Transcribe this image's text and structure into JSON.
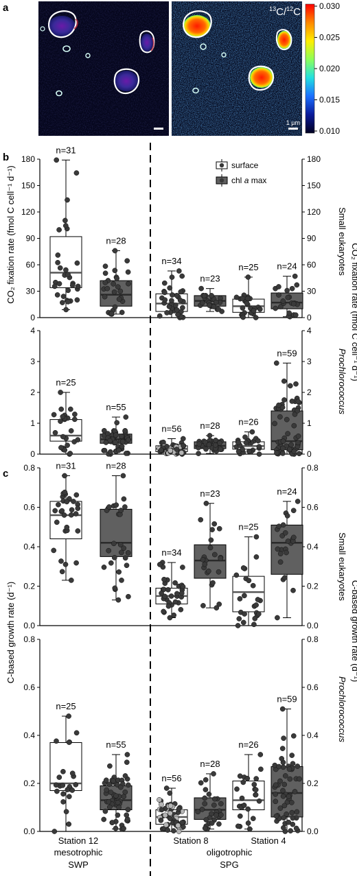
{
  "panel_letters": {
    "a": "a",
    "b": "b",
    "c": "c"
  },
  "imagery": {
    "ratio_label_c13": "13",
    "ratio_label_c": "C/",
    "ratio_label_c12": "12",
    "ratio_label_c2": "C",
    "scale_bar_label": "1 µm",
    "colorbar_ticks": [
      "0.030",
      "0.025",
      "0.020",
      "0.015",
      "0.010"
    ],
    "colorbar_stops": [
      "#ff0000",
      "#ff8800",
      "#ffee00",
      "#8cff5a",
      "#22e0e0",
      "#1b6fff",
      "#0a1a9a",
      "#000020"
    ]
  },
  "axis_labels": {
    "fixation_left": "CO₂ fixation rate (fmol C cell⁻¹ d⁻¹)",
    "fixation_right": "CO₂ fixation rate (fmol C cell⁻¹ d⁻¹)",
    "growth_left": "C-based growth rate (d⁻¹)",
    "growth_right": "C-based growth rate (d⁻¹)",
    "small_eukaryotes": "Small eukaryotes",
    "prochlorococcus": "Prochlorococcus"
  },
  "legend": {
    "surface": "surface",
    "chl_prefix": "chl ",
    "chl_italic": "a",
    "chl_suffix": " max"
  },
  "x_labels": {
    "station12": "Station 12",
    "station8": "Station 8",
    "station4": "Station 4",
    "mesotrophic": "mesotrophic",
    "oligotrophic": "oligotrophic",
    "swp": "SWP",
    "spg": "SPG"
  },
  "colors": {
    "surface_box": "#ffffff",
    "chl_box": "#606060",
    "point": "#3a3a3a",
    "point_light": "#b5b5b5"
  },
  "chart_data": [
    {
      "type": "box",
      "panel": "b-top",
      "ylabel": "CO₂ fixation rate (fmol C cell⁻¹ d⁻¹)",
      "right_label": "Small eukaryotes",
      "ylim": [
        0,
        180
      ],
      "yticks": [
        0,
        30,
        60,
        90,
        120,
        150,
        180
      ],
      "legend_shown": true,
      "legend_position": "top-right",
      "series": [
        {
          "station": "Station 12",
          "depth": "surface",
          "n_label": "n=31",
          "n": 31,
          "whisker_low": 9,
          "q1": 34,
          "median": 51,
          "q3": 92,
          "whisker_high": 179
        },
        {
          "station": "Station 12",
          "depth": "chl a max",
          "n_label": "n=28",
          "n": 28,
          "whisker_low": 4,
          "q1": 13,
          "median": 26,
          "q3": 42,
          "whisker_high": 76
        },
        {
          "station": "Station 8",
          "depth": "surface",
          "n_label": "n=34",
          "n": 34,
          "whisker_low": 0,
          "q1": 7,
          "median": 16,
          "q3": 27,
          "whisker_high": 53
        },
        {
          "station": "Station 8",
          "depth": "chl a max",
          "n_label": "n=23",
          "n": 23,
          "whisker_low": 7,
          "q1": 13,
          "median": 19,
          "q3": 25,
          "whisker_high": 33
        },
        {
          "station": "Station 4",
          "depth": "surface",
          "n_label": "n=25",
          "n": 25,
          "whisker_low": 0,
          "q1": 6,
          "median": 13,
          "q3": 21,
          "whisker_high": 46
        },
        {
          "station": "Station 4",
          "depth": "chl a max",
          "n_label": "n=24",
          "n": 24,
          "whisker_low": 1,
          "q1": 10,
          "median": 17,
          "q3": 28,
          "whisker_high": 47
        }
      ]
    },
    {
      "type": "box",
      "panel": "b-bottom",
      "ylabel": "CO₂ fixation rate (fmol C cell⁻¹ d⁻¹)",
      "right_label": "Prochlorococcus",
      "ylim": [
        0,
        4
      ],
      "yticks": [
        0,
        1,
        2,
        3,
        4
      ],
      "series": [
        {
          "station": "Station 12",
          "depth": "surface",
          "n_label": "n=25",
          "n": 25,
          "whisker_low": 0,
          "q1": 0.42,
          "median": 0.6,
          "q3": 1.12,
          "whisker_high": 2.0
        },
        {
          "station": "Station 12",
          "depth": "chl a max",
          "n_label": "n=55",
          "n": 55,
          "whisker_low": 0,
          "q1": 0.35,
          "median": 0.48,
          "q3": 0.65,
          "whisker_high": 1.2
        },
        {
          "station": "Station 8",
          "depth": "surface",
          "n_label": "n=56",
          "n": 56,
          "whisker_low": 0,
          "q1": 0.08,
          "median": 0.17,
          "q3": 0.27,
          "whisker_high": 0.5
        },
        {
          "station": "Station 8",
          "depth": "chl a max",
          "n_label": "n=28",
          "n": 28,
          "whisker_low": 0.02,
          "q1": 0.18,
          "median": 0.27,
          "q3": 0.4,
          "whisker_high": 0.6
        },
        {
          "station": "Station 4",
          "depth": "surface",
          "n_label": "n=26",
          "n": 26,
          "whisker_low": 0,
          "q1": 0.16,
          "median": 0.26,
          "q3": 0.4,
          "whisker_high": 0.72
        },
        {
          "station": "Station 4",
          "depth": "chl a max",
          "n_label": "n=59",
          "n": 59,
          "whisker_low": 0,
          "q1": 0.14,
          "median": 0.42,
          "q3": 1.4,
          "whisker_high": 2.95
        }
      ]
    },
    {
      "type": "box",
      "panel": "c-top",
      "ylabel": "C-based growth rate (d⁻¹)",
      "right_label": "Small eukaryotes",
      "ylim": [
        0,
        0.8
      ],
      "yticks": [
        0.0,
        0.2,
        0.4,
        0.6,
        0.8
      ],
      "series": [
        {
          "station": "Station 12",
          "depth": "surface",
          "n_label": "n=31",
          "n": 31,
          "whisker_low": 0.23,
          "q1": 0.44,
          "median": 0.56,
          "q3": 0.63,
          "whisker_high": 0.76
        },
        {
          "station": "Station 12",
          "depth": "chl a max",
          "n_label": "n=28",
          "n": 28,
          "whisker_low": 0.13,
          "q1": 0.35,
          "median": 0.42,
          "q3": 0.59,
          "whisker_high": 0.76
        },
        {
          "station": "Station 8",
          "depth": "surface",
          "n_label": "n=34",
          "n": 34,
          "whisker_low": 0.04,
          "q1": 0.11,
          "median": 0.15,
          "q3": 0.19,
          "whisker_high": 0.32
        },
        {
          "station": "Station 8",
          "depth": "chl a max",
          "n_label": "n=23",
          "n": 23,
          "whisker_low": 0.09,
          "q1": 0.24,
          "median": 0.33,
          "q3": 0.41,
          "whisker_high": 0.62
        },
        {
          "station": "Station 4",
          "depth": "surface",
          "n_label": "n=25",
          "n": 25,
          "whisker_low": 0.0,
          "q1": 0.07,
          "median": 0.17,
          "q3": 0.25,
          "whisker_high": 0.45
        },
        {
          "station": "Station 4",
          "depth": "chl a max",
          "n_label": "n=24",
          "n": 24,
          "whisker_low": 0.04,
          "q1": 0.26,
          "median": 0.42,
          "q3": 0.51,
          "whisker_high": 0.63
        }
      ]
    },
    {
      "type": "box",
      "panel": "c-bottom",
      "ylabel": "C-based growth rate (d⁻¹)",
      "right_label": "Prochlorococcus",
      "ylim": [
        0,
        0.8
      ],
      "yticks": [
        0.0,
        0.2,
        0.4,
        0.6,
        0.8
      ],
      "series": [
        {
          "station": "Station 12",
          "depth": "surface",
          "n_label": "n=25",
          "n": 25,
          "whisker_low": 0.0,
          "q1": 0.17,
          "median": 0.2,
          "q3": 0.37,
          "whisker_high": 0.48
        },
        {
          "station": "Station 12",
          "depth": "chl a max",
          "n_label": "n=55",
          "n": 55,
          "whisker_low": 0.01,
          "q1": 0.09,
          "median": 0.13,
          "q3": 0.19,
          "whisker_high": 0.32
        },
        {
          "station": "Station 8",
          "depth": "surface",
          "n_label": "n=56",
          "n": 56,
          "whisker_low": 0.0,
          "q1": 0.03,
          "median": 0.06,
          "q3": 0.09,
          "whisker_high": 0.18
        },
        {
          "station": "Station 8",
          "depth": "chl a max",
          "n_label": "n=28",
          "n": 28,
          "whisker_low": 0.01,
          "q1": 0.05,
          "median": 0.09,
          "q3": 0.14,
          "whisker_high": 0.24
        },
        {
          "station": "Station 4",
          "depth": "surface",
          "n_label": "n=26",
          "n": 26,
          "whisker_low": 0.01,
          "q1": 0.09,
          "median": 0.13,
          "q3": 0.21,
          "whisker_high": 0.32
        },
        {
          "station": "Station 4",
          "depth": "chl a max",
          "n_label": "n=59",
          "n": 59,
          "whisker_low": 0.0,
          "q1": 0.06,
          "median": 0.16,
          "q3": 0.27,
          "whisker_high": 0.51
        }
      ]
    }
  ]
}
